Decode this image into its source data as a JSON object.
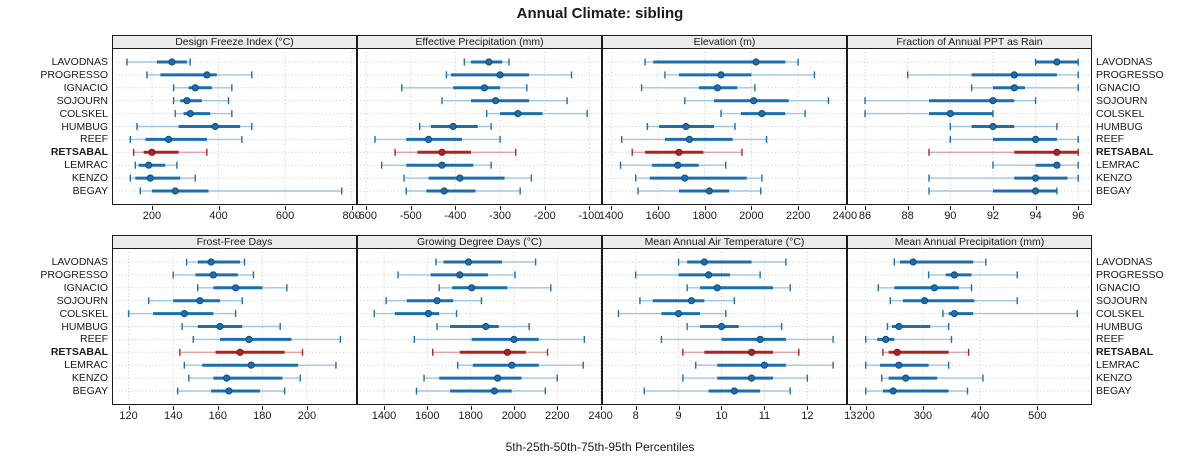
{
  "title": "Annual Climate: sibling",
  "caption": "5th-25th-50th-75th-95th Percentiles",
  "sites": [
    "LAVODNAS",
    "PROGRESSO",
    "IGNACIO",
    "SOJOURN",
    "COLSKEL",
    "HUMBUG",
    "REEF",
    "RETSABAL",
    "LEMRAC",
    "KENZO",
    "BEGAY"
  ],
  "highlight_site": "RETSABAL",
  "colors": {
    "blue": "#1b6fae",
    "blue_light": "#9fc6e0",
    "blue_dark": "#0e4d7c",
    "red": "#b22222",
    "red_light": "#dca4a4",
    "red_dark": "#7c1414",
    "grid": "#c9c9c9",
    "strip_bg": "#ebebeb",
    "border": "#1a1a1a",
    "text": "#1a1a1a"
  },
  "chart_data": {
    "type": "scatter",
    "subtype": "percentile-interval-dotplot",
    "legend_position": "none",
    "grid": "dotted",
    "percentile_labels": [
      "5th",
      "25th",
      "50th",
      "75th",
      "95th"
    ],
    "panels": [
      {
        "title": "Design Freeze Index (°C)",
        "row": 0,
        "col": 0,
        "xlim": [
          83,
          813
        ],
        "ticks": [
          200,
          400,
          600,
          800
        ],
        "tick_labels": [
          "200",
          "400",
          "600",
          "800"
        ],
        "values": [
          [
            125,
            215,
            260,
            305,
            315
          ],
          [
            185,
            225,
            365,
            395,
            500
          ],
          [
            265,
            310,
            330,
            380,
            440
          ],
          [
            265,
            285,
            305,
            350,
            430
          ],
          [
            270,
            295,
            315,
            375,
            440
          ],
          [
            155,
            280,
            390,
            465,
            500
          ],
          [
            135,
            180,
            250,
            365,
            470
          ],
          [
            145,
            175,
            200,
            280,
            365
          ],
          [
            150,
            160,
            190,
            240,
            275
          ],
          [
            135,
            150,
            195,
            285,
            330
          ],
          [
            165,
            200,
            270,
            370,
            770
          ]
        ]
      },
      {
        "title": "Effective Precipitation (mm)",
        "row": 0,
        "col": 1,
        "xlim": [
          -618,
          -74
        ],
        "ticks": [
          -600,
          -500,
          -400,
          -300,
          -200,
          -100
        ],
        "tick_labels": [
          "-600",
          "-500",
          "-400",
          "-300",
          "-200",
          "-100"
        ],
        "values": [
          [
            -380,
            -365,
            -325,
            -295,
            -280
          ],
          [
            -420,
            -410,
            -300,
            -235,
            -140
          ],
          [
            -520,
            -405,
            -335,
            -300,
            -240
          ],
          [
            -430,
            -365,
            -310,
            -235,
            -150
          ],
          [
            -330,
            -300,
            -260,
            -205,
            -105
          ],
          [
            -480,
            -455,
            -405,
            -350,
            -320
          ],
          [
            -580,
            -510,
            -460,
            -385,
            -300
          ],
          [
            -535,
            -485,
            -430,
            -365,
            -265
          ],
          [
            -565,
            -510,
            -430,
            -360,
            -320
          ],
          [
            -515,
            -460,
            -390,
            -290,
            -230
          ],
          [
            -510,
            -465,
            -425,
            -355,
            -255
          ]
        ]
      },
      {
        "title": "Elevation (m)",
        "row": 0,
        "col": 2,
        "xlim": [
          1365,
          2405
        ],
        "ticks": [
          1400,
          1600,
          1800,
          2000,
          2200,
          2400
        ],
        "tick_labels": [
          "1400",
          "1600",
          "1800",
          "2000",
          "2200",
          "2400"
        ],
        "values": [
          [
            1545,
            1580,
            2020,
            2145,
            2200
          ],
          [
            1630,
            1690,
            1870,
            2000,
            2270
          ],
          [
            1530,
            1775,
            1855,
            1940,
            2015
          ],
          [
            1715,
            1840,
            2010,
            2160,
            2330
          ],
          [
            1870,
            1955,
            2045,
            2145,
            2230
          ],
          [
            1555,
            1605,
            1720,
            1840,
            1930
          ],
          [
            1445,
            1630,
            1735,
            1920,
            2065
          ],
          [
            1490,
            1545,
            1690,
            1795,
            1960
          ],
          [
            1440,
            1575,
            1685,
            1775,
            1890
          ],
          [
            1505,
            1565,
            1715,
            1980,
            2045
          ],
          [
            1515,
            1690,
            1820,
            1905,
            2040
          ]
        ]
      },
      {
        "title": "Fraction of Annual PPT as Rain",
        "row": 0,
        "col": 3,
        "xlim": [
          85.2,
          96.6
        ],
        "ticks": [
          86,
          88,
          90,
          92,
          94,
          96
        ],
        "tick_labels": [
          "86",
          "88",
          "90",
          "92",
          "94",
          "96"
        ],
        "values": [
          [
            94,
            94,
            95,
            96,
            96
          ],
          [
            88,
            91,
            93,
            95,
            96
          ],
          [
            91,
            92,
            93,
            93.5,
            96
          ],
          [
            86,
            89,
            92,
            93,
            94
          ],
          [
            86,
            89,
            90,
            92,
            92
          ],
          [
            90,
            91,
            92,
            93,
            95
          ],
          [
            90,
            92,
            94,
            95,
            96
          ],
          [
            89,
            93,
            95,
            96,
            96
          ],
          [
            92,
            94,
            95,
            95,
            96
          ],
          [
            89,
            93,
            94,
            95.5,
            96
          ],
          [
            89,
            92,
            94,
            95,
            95
          ]
        ]
      },
      {
        "title": "Frost-Free Days",
        "row": 1,
        "col": 0,
        "xlim": [
          113,
          222
        ],
        "ticks": [
          120,
          140,
          160,
          180,
          200
        ],
        "tick_labels": [
          "120",
          "140",
          "160",
          "180",
          "200"
        ],
        "values": [
          [
            146,
            151,
            157,
            170,
            172
          ],
          [
            140,
            150,
            158,
            169,
            176
          ],
          [
            151,
            158,
            168,
            180,
            191
          ],
          [
            129,
            140,
            152,
            161,
            171
          ],
          [
            120,
            131,
            145,
            158,
            168
          ],
          [
            144,
            151,
            161,
            171,
            188
          ],
          [
            149,
            161,
            174,
            193,
            215
          ],
          [
            143,
            159,
            170,
            190,
            198
          ],
          [
            145,
            153,
            175,
            196,
            213
          ],
          [
            147,
            158,
            164,
            189,
            197
          ],
          [
            142,
            157,
            165,
            179,
            190
          ]
        ]
      },
      {
        "title": "Growing Degree Days (°C)",
        "row": 1,
        "col": 1,
        "xlim": [
          1280,
          2402
        ],
        "ticks": [
          1400,
          1600,
          1800,
          2000,
          2200,
          2400
        ],
        "tick_labels": [
          "1400",
          "1600",
          "1800",
          "2000",
          "2200",
          "2400"
        ],
        "values": [
          [
            1640,
            1675,
            1790,
            1945,
            2100
          ],
          [
            1465,
            1615,
            1750,
            1880,
            2005
          ],
          [
            1655,
            1715,
            1805,
            1970,
            2170
          ],
          [
            1410,
            1505,
            1645,
            1720,
            1850
          ],
          [
            1355,
            1450,
            1605,
            1655,
            1735
          ],
          [
            1645,
            1705,
            1870,
            1930,
            2070
          ],
          [
            1540,
            1805,
            2000,
            2115,
            2325
          ],
          [
            1625,
            1750,
            1970,
            2055,
            2155
          ],
          [
            1740,
            1810,
            1990,
            2115,
            2320
          ],
          [
            1585,
            1655,
            1925,
            2035,
            2200
          ],
          [
            1550,
            1705,
            1910,
            1990,
            2145
          ]
        ]
      },
      {
        "title": "Mean Annual Air Temperature (°C)",
        "row": 1,
        "col": 2,
        "xlim": [
          7.24,
          12.9
        ],
        "ticks": [
          8,
          9,
          10,
          11,
          12,
          13
        ],
        "tick_labels": [
          "8",
          "9",
          "10",
          "11",
          "12",
          "13"
        ],
        "values": [
          [
            9.0,
            9.2,
            9.6,
            10.7,
            11.5
          ],
          [
            8.0,
            9.0,
            9.7,
            10.2,
            10.9
          ],
          [
            9.2,
            9.5,
            9.9,
            11.2,
            11.6
          ],
          [
            8.1,
            8.4,
            9.3,
            9.6,
            10.3
          ],
          [
            7.6,
            8.6,
            9.0,
            9.5,
            10.1
          ],
          [
            9.2,
            9.5,
            10.0,
            10.4,
            11.4
          ],
          [
            8.6,
            10.0,
            10.9,
            11.5,
            12.6
          ],
          [
            9.1,
            9.6,
            10.7,
            11.2,
            11.8
          ],
          [
            9.4,
            9.9,
            11.0,
            11.5,
            12.6
          ],
          [
            9.1,
            9.9,
            10.7,
            11.2,
            12.0
          ],
          [
            8.2,
            9.7,
            10.3,
            10.9,
            11.6
          ]
        ]
      },
      {
        "title": "Mean Annual Precipitation (mm)",
        "row": 1,
        "col": 3,
        "xlim": [
          169,
          594
        ],
        "ticks": [
          200,
          300,
          400,
          500
        ],
        "tick_labels": [
          "200",
          "300",
          "400",
          "500"
        ],
        "values": [
          [
            250,
            260,
            283,
            388,
            410
          ],
          [
            310,
            340,
            355,
            385,
            465
          ],
          [
            222,
            250,
            320,
            363,
            385
          ],
          [
            243,
            265,
            303,
            390,
            465
          ],
          [
            335,
            345,
            355,
            388,
            570
          ],
          [
            238,
            246,
            258,
            313,
            345
          ],
          [
            200,
            220,
            235,
            250,
            350
          ],
          [
            230,
            240,
            255,
            345,
            380
          ],
          [
            200,
            225,
            258,
            310,
            345
          ],
          [
            228,
            240,
            270,
            325,
            405
          ],
          [
            200,
            230,
            248,
            345,
            378
          ]
        ]
      }
    ]
  }
}
